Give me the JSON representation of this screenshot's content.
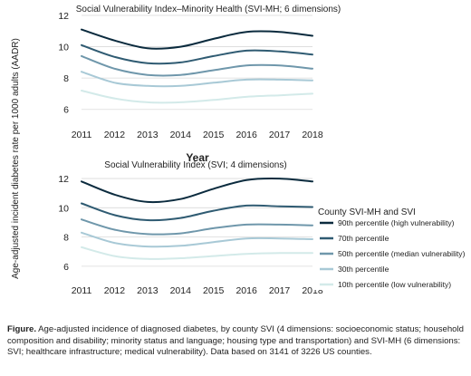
{
  "figure": {
    "ylabel": "Age-adjusted incident diabetes rate per 1000 adults (AADR)",
    "xlabel": "Year",
    "legend_title": "County SVI-MH and SVI",
    "legend_items": [
      {
        "label": "90th percentile (high vulnerability)",
        "color": "#0b2b3e"
      },
      {
        "label": "70th percentile",
        "color": "#2f5b72"
      },
      {
        "label": "50th percentile (median vulnerability)",
        "color": "#6f97ab"
      },
      {
        "label": "30th percentile",
        "color": "#a8c9d6"
      },
      {
        "label": "10th percentile (low vulnerability)",
        "color": "#d3eae9"
      }
    ]
  },
  "chart_data": [
    {
      "type": "line",
      "title": "Social Vulnerability Index–Minority Health (SVI-MH; 6 dimensions)",
      "x": [
        2011,
        2012,
        2013,
        2014,
        2015,
        2016,
        2017,
        2018
      ],
      "x_ticks": [
        "2011",
        "2012",
        "2013",
        "2014",
        "2015",
        "2016",
        "2017",
        "2018"
      ],
      "ylim": [
        5,
        12
      ],
      "y_ticks": [
        "6",
        "8",
        "10",
        "12"
      ],
      "grid": "horizontal",
      "series": [
        {
          "name": "90th percentile (high vulnerability)",
          "color": "#0b2b3e",
          "values": [
            11.1,
            10.4,
            9.9,
            10.0,
            10.5,
            10.95,
            10.95,
            10.7
          ]
        },
        {
          "name": "70th percentile",
          "color": "#2f5b72",
          "values": [
            10.1,
            9.35,
            8.95,
            9.0,
            9.4,
            9.75,
            9.7,
            9.5
          ]
        },
        {
          "name": "50th percentile (median vulnerability)",
          "color": "#6f97ab",
          "values": [
            9.4,
            8.6,
            8.2,
            8.2,
            8.5,
            8.8,
            8.8,
            8.6
          ]
        },
        {
          "name": "30th percentile",
          "color": "#a8c9d6",
          "values": [
            8.4,
            7.7,
            7.5,
            7.5,
            7.7,
            7.9,
            7.9,
            7.85
          ]
        },
        {
          "name": "10th percentile (low vulnerability)",
          "color": "#d3eae9",
          "values": [
            7.2,
            6.7,
            6.45,
            6.45,
            6.6,
            6.8,
            6.9,
            7.0
          ]
        }
      ]
    },
    {
      "type": "line",
      "title": "Social Vulnerability Index (SVI; 4 dimensions)",
      "x": [
        2011,
        2012,
        2013,
        2014,
        2015,
        2016,
        2017,
        2018
      ],
      "x_ticks": [
        "2011",
        "2012",
        "2013",
        "2014",
        "2015",
        "2016",
        "2017",
        "2018"
      ],
      "ylim": [
        5,
        12.5
      ],
      "y_ticks": [
        "6",
        "8",
        "10",
        "12"
      ],
      "grid": "horizontal",
      "series": [
        {
          "name": "90th percentile (high vulnerability)",
          "color": "#0b2b3e",
          "values": [
            11.8,
            10.9,
            10.4,
            10.6,
            11.3,
            11.9,
            12.0,
            11.8
          ]
        },
        {
          "name": "70th percentile",
          "color": "#2f5b72",
          "values": [
            10.3,
            9.5,
            9.15,
            9.3,
            9.8,
            10.15,
            10.1,
            10.05
          ]
        },
        {
          "name": "50th percentile (median vulnerability)",
          "color": "#6f97ab",
          "values": [
            9.2,
            8.5,
            8.2,
            8.25,
            8.6,
            8.85,
            8.85,
            8.8
          ]
        },
        {
          "name": "30th percentile",
          "color": "#a8c9d6",
          "values": [
            8.3,
            7.6,
            7.35,
            7.4,
            7.65,
            7.9,
            7.9,
            7.85
          ]
        },
        {
          "name": "10th percentile (low vulnerability)",
          "color": "#d3eae9",
          "values": [
            7.3,
            6.7,
            6.5,
            6.55,
            6.7,
            6.85,
            6.9,
            6.9
          ]
        }
      ]
    }
  ],
  "caption": {
    "lead": "Figure.",
    "text": " Age-adjusted incidence of diagnosed diabetes, by county SVI (4 dimensions: socioeconomic status; household composition and disability; minority status and language; housing type and transportation) and SVI-MH (6 dimensions: SVI; healthcare infrastructure; medical vulnerability). Data based on 3141 of 3226 US counties."
  }
}
